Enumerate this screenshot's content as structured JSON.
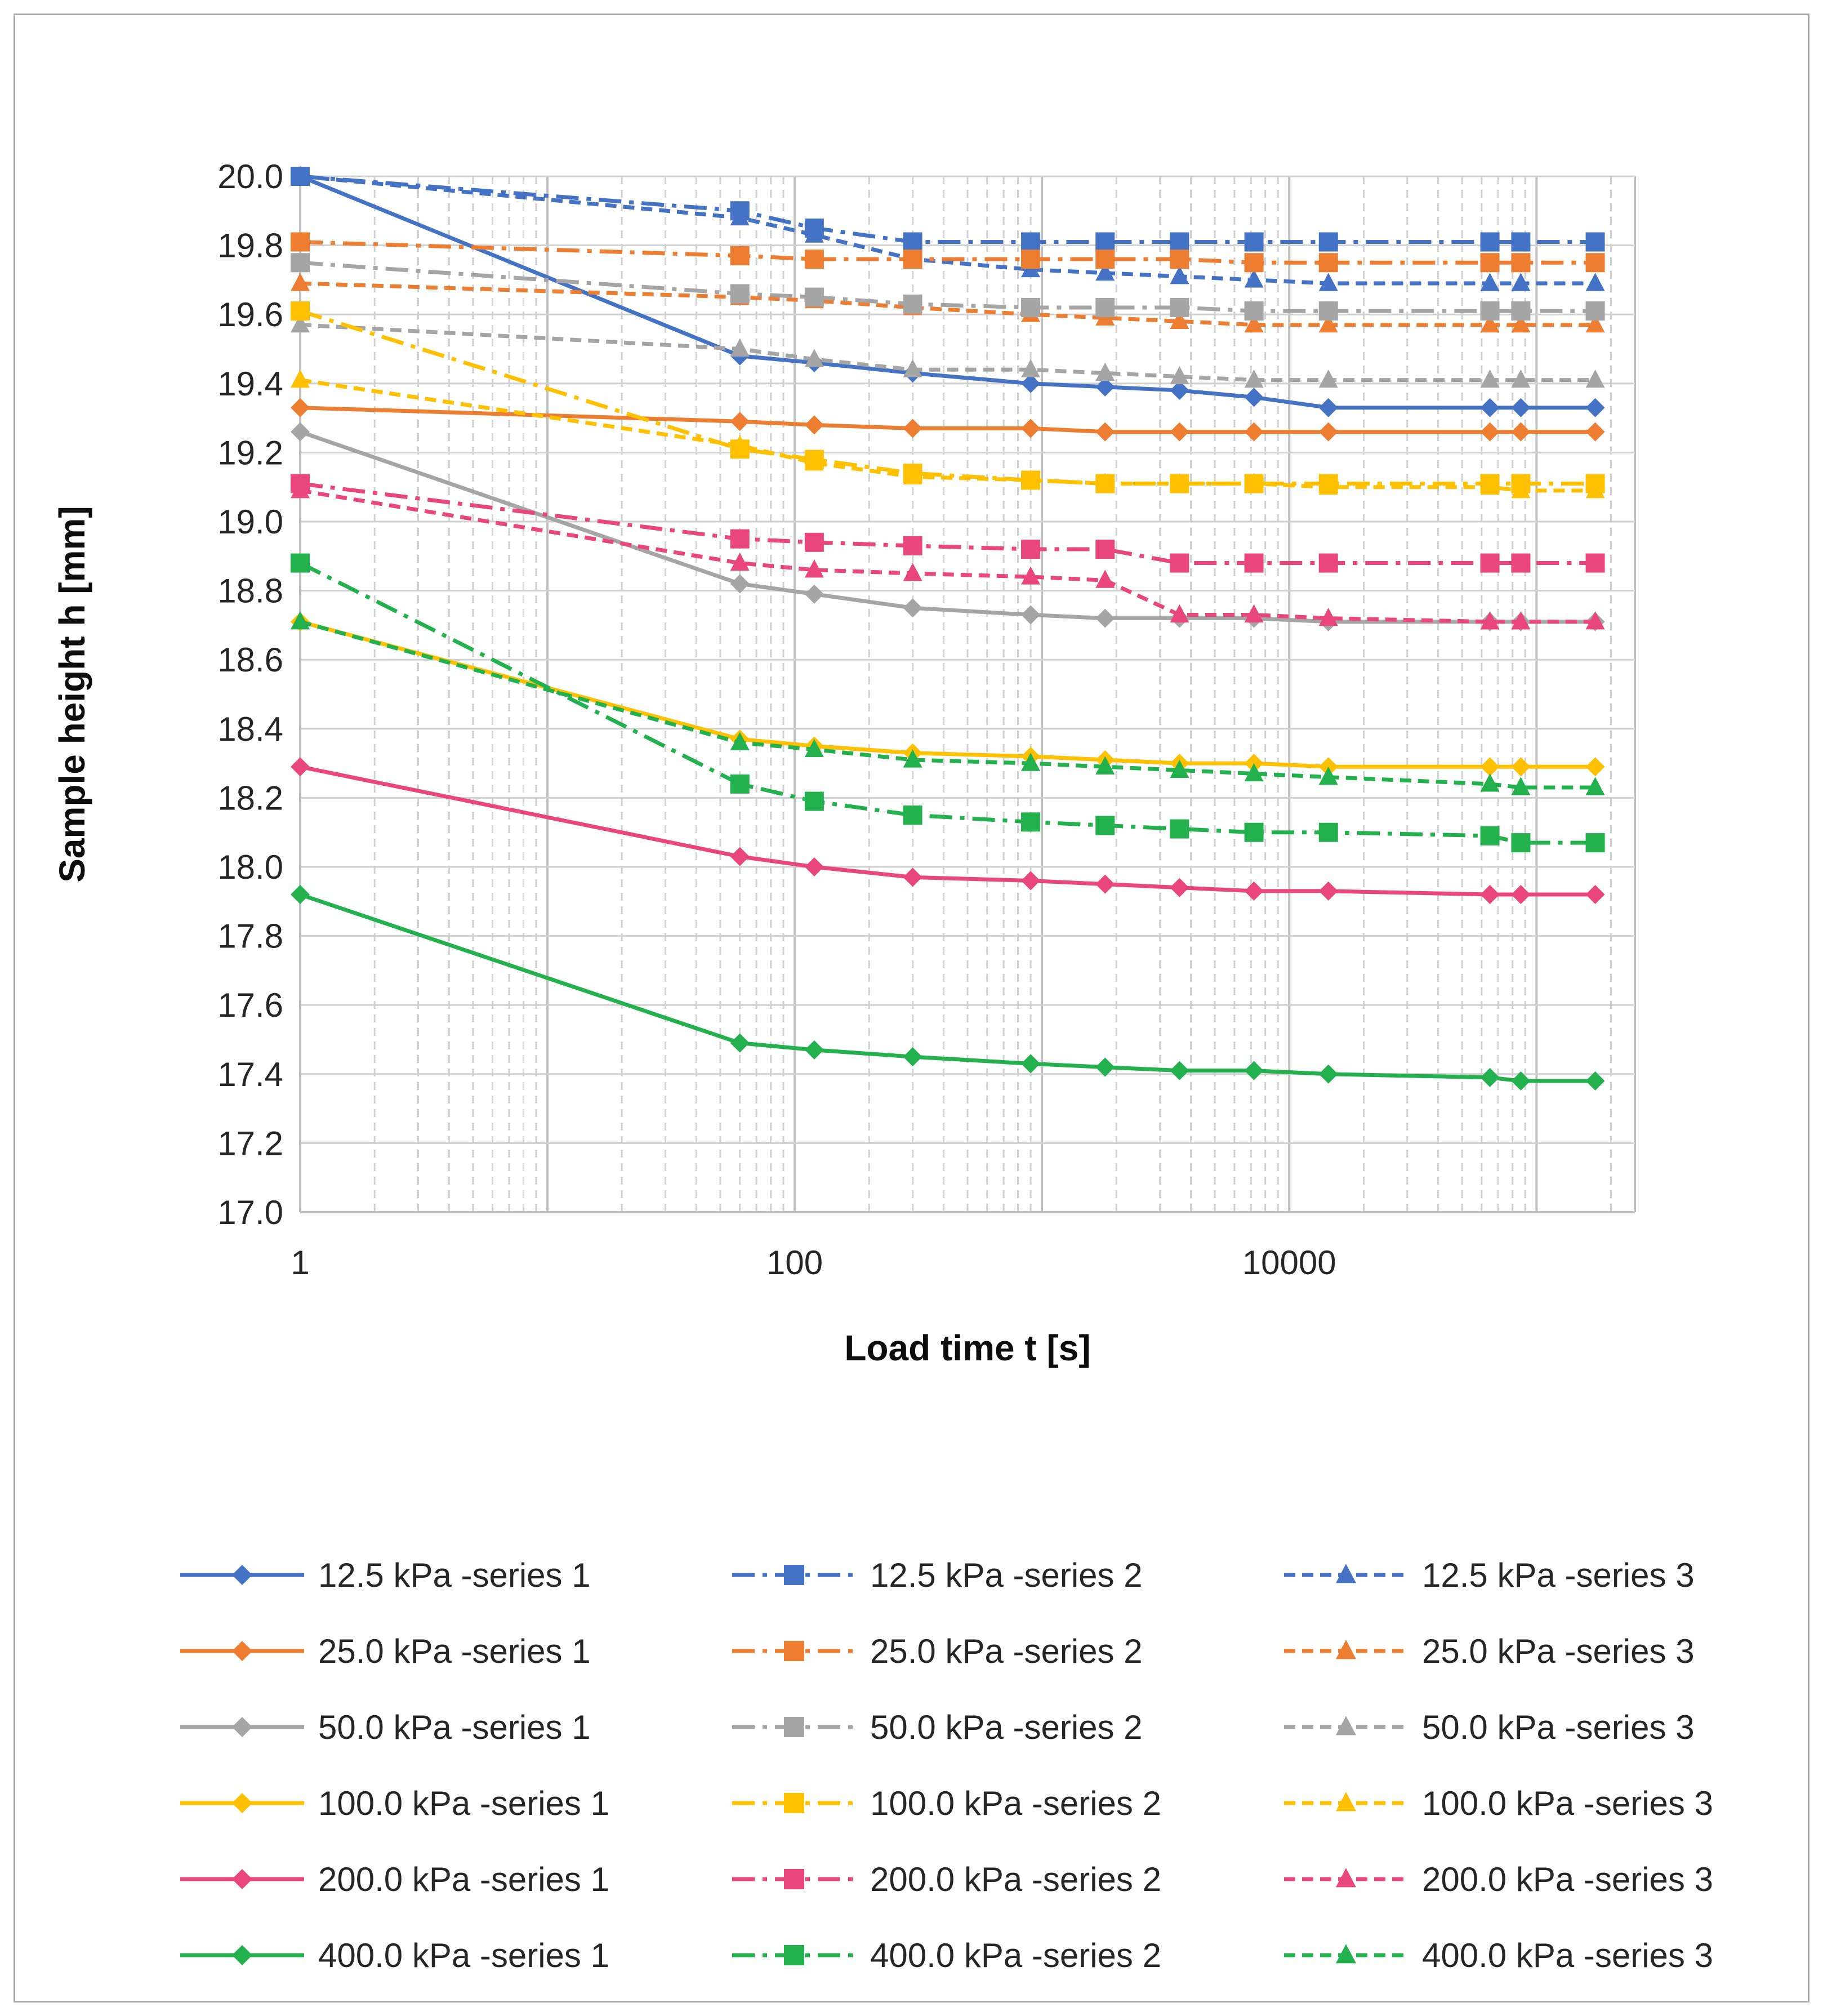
{
  "chart_data": {
    "type": "line",
    "title": "",
    "xlabel": "Load time t [s]",
    "ylabel": "Sample height h [mm]",
    "xscale": "log",
    "xlim": [
      1,
      250000
    ],
    "ylim": [
      17.0,
      20.0
    ],
    "x_ticks": [
      "1",
      "100",
      "10000"
    ],
    "y_ticks": [
      "17.0",
      "17.2",
      "17.4",
      "17.6",
      "17.8",
      "18.0",
      "18.2",
      "18.4",
      "18.6",
      "18.8",
      "19.0",
      "19.2",
      "19.4",
      "19.6",
      "19.8",
      "20.0"
    ],
    "grid": true,
    "legend_position": "bottom",
    "series": [
      {
        "name": "12.5 kPa -series 1",
        "color": "#4472C4",
        "dash": "solid",
        "marker": "diamond",
        "points": [
          [
            1,
            20.0
          ],
          [
            60,
            19.48
          ],
          [
            120,
            19.46
          ],
          [
            300,
            19.43
          ],
          [
            900,
            19.4
          ],
          [
            1800,
            19.39
          ],
          [
            3600,
            19.38
          ],
          [
            7200,
            19.36
          ],
          [
            14400,
            19.33
          ],
          [
            64800,
            19.33
          ],
          [
            86400,
            19.33
          ],
          [
            172800,
            19.33
          ]
        ]
      },
      {
        "name": "12.5 kPa -series 2",
        "color": "#4472C4",
        "dash": "dashdot",
        "marker": "square",
        "points": [
          [
            1,
            20.0
          ],
          [
            60,
            19.9
          ],
          [
            120,
            19.85
          ],
          [
            300,
            19.81
          ],
          [
            900,
            19.81
          ],
          [
            1800,
            19.81
          ],
          [
            3600,
            19.81
          ],
          [
            7200,
            19.81
          ],
          [
            14400,
            19.81
          ],
          [
            64800,
            19.81
          ],
          [
            86400,
            19.81
          ],
          [
            172800,
            19.81
          ]
        ]
      },
      {
        "name": "12.5 kPa -series 3",
        "color": "#4472C4",
        "dash": "dash",
        "marker": "triangle",
        "points": [
          [
            1,
            20.0
          ],
          [
            60,
            19.88
          ],
          [
            120,
            19.83
          ],
          [
            300,
            19.76
          ],
          [
            900,
            19.73
          ],
          [
            1800,
            19.72
          ],
          [
            3600,
            19.71
          ],
          [
            7200,
            19.7
          ],
          [
            14400,
            19.69
          ],
          [
            64800,
            19.69
          ],
          [
            86400,
            19.69
          ],
          [
            172800,
            19.69
          ]
        ]
      },
      {
        "name": "25.0 kPa -series 1",
        "color": "#ED7D31",
        "dash": "solid",
        "marker": "diamond",
        "points": [
          [
            1,
            19.33
          ],
          [
            60,
            19.29
          ],
          [
            120,
            19.28
          ],
          [
            300,
            19.27
          ],
          [
            900,
            19.27
          ],
          [
            1800,
            19.26
          ],
          [
            3600,
            19.26
          ],
          [
            7200,
            19.26
          ],
          [
            14400,
            19.26
          ],
          [
            64800,
            19.26
          ],
          [
            86400,
            19.26
          ],
          [
            172800,
            19.26
          ]
        ]
      },
      {
        "name": "25.0 kPa -series 2",
        "color": "#ED7D31",
        "dash": "dashdot",
        "marker": "square",
        "points": [
          [
            1,
            19.81
          ],
          [
            60,
            19.77
          ],
          [
            120,
            19.76
          ],
          [
            300,
            19.76
          ],
          [
            900,
            19.76
          ],
          [
            1800,
            19.76
          ],
          [
            3600,
            19.76
          ],
          [
            7200,
            19.75
          ],
          [
            14400,
            19.75
          ],
          [
            64800,
            19.75
          ],
          [
            86400,
            19.75
          ],
          [
            172800,
            19.75
          ]
        ]
      },
      {
        "name": "25.0 kPa -series 3",
        "color": "#ED7D31",
        "dash": "dash",
        "marker": "triangle",
        "points": [
          [
            1,
            19.69
          ],
          [
            60,
            19.65
          ],
          [
            120,
            19.64
          ],
          [
            300,
            19.62
          ],
          [
            900,
            19.6
          ],
          [
            1800,
            19.59
          ],
          [
            3600,
            19.58
          ],
          [
            7200,
            19.57
          ],
          [
            14400,
            19.57
          ],
          [
            64800,
            19.57
          ],
          [
            86400,
            19.57
          ],
          [
            172800,
            19.57
          ]
        ]
      },
      {
        "name": "50.0 kPa -series 1",
        "color": "#A5A5A5",
        "dash": "solid",
        "marker": "diamond",
        "points": [
          [
            1,
            19.26
          ],
          [
            60,
            18.82
          ],
          [
            120,
            18.79
          ],
          [
            300,
            18.75
          ],
          [
            900,
            18.73
          ],
          [
            1800,
            18.72
          ],
          [
            3600,
            18.72
          ],
          [
            7200,
            18.72
          ],
          [
            14400,
            18.71
          ],
          [
            64800,
            18.71
          ],
          [
            86400,
            18.71
          ],
          [
            172800,
            18.71
          ]
        ]
      },
      {
        "name": "50.0 kPa -series 2",
        "color": "#A5A5A5",
        "dash": "dashdot",
        "marker": "square",
        "points": [
          [
            1,
            19.75
          ],
          [
            60,
            19.66
          ],
          [
            120,
            19.65
          ],
          [
            300,
            19.63
          ],
          [
            900,
            19.62
          ],
          [
            1800,
            19.62
          ],
          [
            3600,
            19.62
          ],
          [
            7200,
            19.61
          ],
          [
            14400,
            19.61
          ],
          [
            64800,
            19.61
          ],
          [
            86400,
            19.61
          ],
          [
            172800,
            19.61
          ]
        ]
      },
      {
        "name": "50.0 kPa -series 3",
        "color": "#A5A5A5",
        "dash": "dash",
        "marker": "triangle",
        "points": [
          [
            1,
            19.57
          ],
          [
            60,
            19.5
          ],
          [
            120,
            19.47
          ],
          [
            300,
            19.44
          ],
          [
            900,
            19.44
          ],
          [
            1800,
            19.43
          ],
          [
            3600,
            19.42
          ],
          [
            7200,
            19.41
          ],
          [
            14400,
            19.41
          ],
          [
            64800,
            19.41
          ],
          [
            86400,
            19.41
          ],
          [
            172800,
            19.41
          ]
        ]
      },
      {
        "name": "100.0 kPa -series 1",
        "color": "#FFC000",
        "dash": "solid",
        "marker": "diamond",
        "points": [
          [
            1,
            18.71
          ],
          [
            60,
            18.37
          ],
          [
            120,
            18.35
          ],
          [
            300,
            18.33
          ],
          [
            900,
            18.32
          ],
          [
            1800,
            18.31
          ],
          [
            3600,
            18.3
          ],
          [
            7200,
            18.3
          ],
          [
            14400,
            18.29
          ],
          [
            64800,
            18.29
          ],
          [
            86400,
            18.29
          ],
          [
            172800,
            18.29
          ]
        ]
      },
      {
        "name": "100.0 kPa -series 2",
        "color": "#FFC000",
        "dash": "dashdot",
        "marker": "square",
        "points": [
          [
            1,
            19.61
          ],
          [
            60,
            19.21
          ],
          [
            120,
            19.18
          ],
          [
            300,
            19.14
          ],
          [
            900,
            19.12
          ],
          [
            1800,
            19.11
          ],
          [
            3600,
            19.11
          ],
          [
            7200,
            19.11
          ],
          [
            14400,
            19.11
          ],
          [
            64800,
            19.11
          ],
          [
            86400,
            19.11
          ],
          [
            172800,
            19.11
          ]
        ]
      },
      {
        "name": "100.0 kPa -series 3",
        "color": "#FFC000",
        "dash": "dash",
        "marker": "triangle",
        "points": [
          [
            1,
            19.41
          ],
          [
            60,
            19.22
          ],
          [
            120,
            19.17
          ],
          [
            300,
            19.13
          ],
          [
            900,
            19.12
          ],
          [
            1800,
            19.11
          ],
          [
            3600,
            19.11
          ],
          [
            7200,
            19.11
          ],
          [
            14400,
            19.1
          ],
          [
            64800,
            19.1
          ],
          [
            86400,
            19.09
          ],
          [
            172800,
            19.09
          ]
        ]
      },
      {
        "name": "200.0 kPa -series 1",
        "color": "#E8467C",
        "dash": "solid",
        "marker": "diamond",
        "points": [
          [
            1,
            18.29
          ],
          [
            60,
            18.03
          ],
          [
            120,
            18.0
          ],
          [
            300,
            17.97
          ],
          [
            900,
            17.96
          ],
          [
            1800,
            17.95
          ],
          [
            3600,
            17.94
          ],
          [
            7200,
            17.93
          ],
          [
            14400,
            17.93
          ],
          [
            64800,
            17.92
          ],
          [
            86400,
            17.92
          ],
          [
            172800,
            17.92
          ]
        ]
      },
      {
        "name": "200.0 kPa -series 2",
        "color": "#E8467C",
        "dash": "dashdot",
        "marker": "square",
        "points": [
          [
            1,
            19.11
          ],
          [
            60,
            18.95
          ],
          [
            120,
            18.94
          ],
          [
            300,
            18.93
          ],
          [
            900,
            18.92
          ],
          [
            1800,
            18.92
          ],
          [
            3600,
            18.88
          ],
          [
            7200,
            18.88
          ],
          [
            14400,
            18.88
          ],
          [
            64800,
            18.88
          ],
          [
            86400,
            18.88
          ],
          [
            172800,
            18.88
          ]
        ]
      },
      {
        "name": "200.0 kPa -series 3",
        "color": "#E8467C",
        "dash": "dash",
        "marker": "triangle",
        "points": [
          [
            1,
            19.09
          ],
          [
            60,
            18.88
          ],
          [
            120,
            18.86
          ],
          [
            300,
            18.85
          ],
          [
            900,
            18.84
          ],
          [
            1800,
            18.83
          ],
          [
            3600,
            18.73
          ],
          [
            7200,
            18.73
          ],
          [
            14400,
            18.72
          ],
          [
            64800,
            18.71
          ],
          [
            86400,
            18.71
          ],
          [
            172800,
            18.71
          ]
        ]
      },
      {
        "name": "400.0 kPa -series 1",
        "color": "#22B14C",
        "dash": "solid",
        "marker": "diamond",
        "points": [
          [
            1,
            17.92
          ],
          [
            60,
            17.49
          ],
          [
            120,
            17.47
          ],
          [
            300,
            17.45
          ],
          [
            900,
            17.43
          ],
          [
            1800,
            17.42
          ],
          [
            3600,
            17.41
          ],
          [
            7200,
            17.41
          ],
          [
            14400,
            17.4
          ],
          [
            64800,
            17.39
          ],
          [
            86400,
            17.38
          ],
          [
            172800,
            17.38
          ]
        ]
      },
      {
        "name": "400.0 kPa -series 2",
        "color": "#22B14C",
        "dash": "dashdot",
        "marker": "square",
        "points": [
          [
            1,
            18.88
          ],
          [
            60,
            18.24
          ],
          [
            120,
            18.19
          ],
          [
            300,
            18.15
          ],
          [
            900,
            18.13
          ],
          [
            1800,
            18.12
          ],
          [
            3600,
            18.11
          ],
          [
            7200,
            18.1
          ],
          [
            14400,
            18.1
          ],
          [
            64800,
            18.09
          ],
          [
            86400,
            18.07
          ],
          [
            172800,
            18.07
          ]
        ]
      },
      {
        "name": "400.0 kPa -series 3",
        "color": "#22B14C",
        "dash": "dash",
        "marker": "triangle",
        "points": [
          [
            1,
            18.71
          ],
          [
            60,
            18.36
          ],
          [
            120,
            18.34
          ],
          [
            300,
            18.31
          ],
          [
            900,
            18.3
          ],
          [
            1800,
            18.29
          ],
          [
            3600,
            18.28
          ],
          [
            7200,
            18.27
          ],
          [
            14400,
            18.26
          ],
          [
            64800,
            18.24
          ],
          [
            86400,
            18.23
          ],
          [
            172800,
            18.23
          ]
        ]
      }
    ]
  }
}
